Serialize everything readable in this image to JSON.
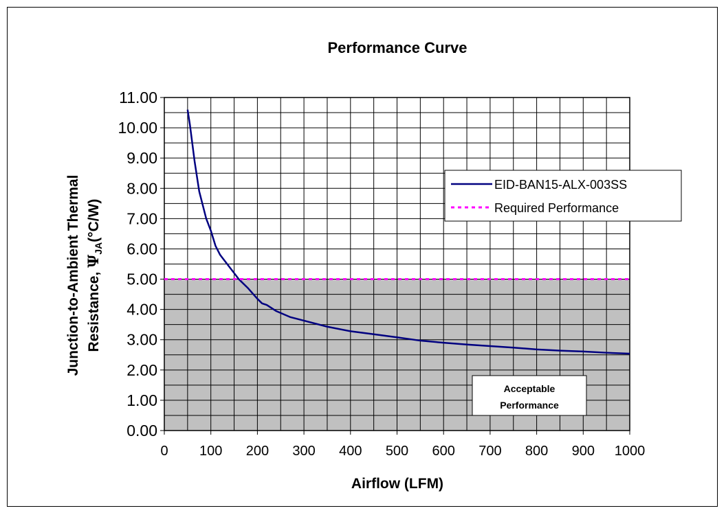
{
  "chart_data": {
    "type": "line",
    "title": "Performance Curve",
    "xlabel": "Airflow (LFM)",
    "ylabel_line1": "Junction-to-Ambient Thermal",
    "ylabel_line2_prefix": "Resistance, ",
    "ylabel_symbol": "Ψ",
    "ylabel_subscript": "JA",
    "ylabel_unit": "(°C/W)",
    "xlim": [
      0,
      1000
    ],
    "ylim": [
      0,
      11
    ],
    "x_ticks": [
      "0",
      "100",
      "200",
      "300",
      "400",
      "500",
      "600",
      "700",
      "800",
      "900",
      "1000"
    ],
    "y_ticks": [
      "0.00",
      "1.00",
      "2.00",
      "3.00",
      "4.00",
      "5.00",
      "6.00",
      "7.00",
      "8.00",
      "9.00",
      "10.00",
      "11.00"
    ],
    "grid": true,
    "legend_position": "right",
    "series": [
      {
        "name": "EID-BAN15-ALX-003SS",
        "color": "#000080",
        "style": "solid",
        "x": [
          50,
          55,
          60,
          65,
          70,
          75,
          80,
          90,
          100,
          110,
          120,
          140,
          160,
          180,
          200,
          210,
          220,
          240,
          270,
          300,
          350,
          400,
          450,
          500,
          550,
          600,
          650,
          700,
          750,
          800,
          850,
          900,
          950,
          1000
        ],
        "y": [
          10.6,
          10.1,
          9.5,
          8.9,
          8.4,
          7.9,
          7.6,
          7.0,
          6.6,
          6.1,
          5.8,
          5.4,
          5.0,
          4.7,
          4.35,
          4.2,
          4.15,
          3.95,
          3.75,
          3.63,
          3.43,
          3.28,
          3.18,
          3.08,
          2.97,
          2.9,
          2.84,
          2.79,
          2.74,
          2.68,
          2.64,
          2.61,
          2.57,
          2.54
        ]
      },
      {
        "name": "Required Performance",
        "color": "#ff00ff",
        "style": "dotted",
        "x": [
          0,
          1000
        ],
        "y": [
          5.0,
          5.0
        ]
      }
    ],
    "acceptable_region": {
      "y_max": 5.0,
      "fill": "#c0c0c0"
    },
    "annotation": {
      "line1": "Acceptable",
      "line2": "Performance"
    }
  }
}
